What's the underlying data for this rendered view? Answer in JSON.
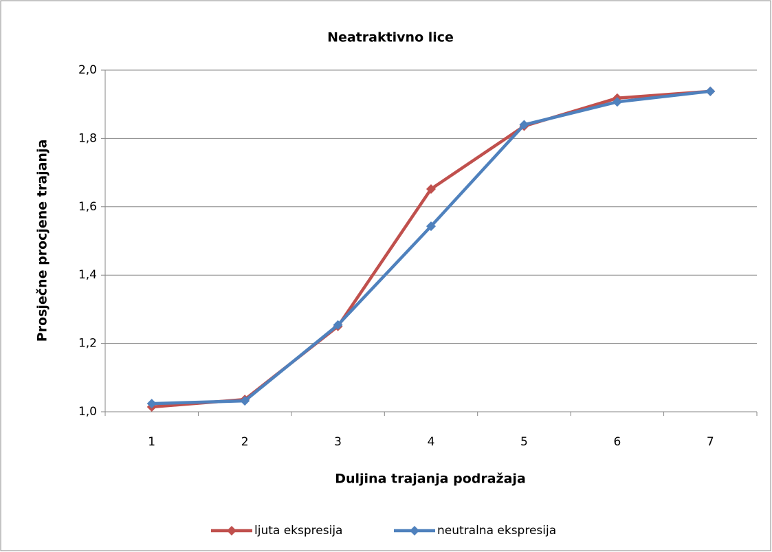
{
  "chart_data": {
    "type": "line",
    "title": "Neatraktivno lice",
    "x_label": "Duljina trajanja podražaja",
    "y_label": "Prosječne  procjene  trajanja",
    "categories": [
      "1",
      "2",
      "3",
      "4",
      "5",
      "6",
      "7"
    ],
    "series": [
      {
        "name": "ljuta ekspresija",
        "color": "#c0504d",
        "values": [
          1.014,
          1.036,
          1.25,
          1.652,
          1.836,
          1.918,
          1.938
        ]
      },
      {
        "name": "neutralna ekspresija",
        "color": "#4f81bd",
        "values": [
          1.024,
          1.032,
          1.254,
          1.543,
          1.84,
          1.907,
          1.938
        ]
      }
    ],
    "ylim": [
      1,
      2
    ],
    "yticks": [
      {
        "value": 1,
        "label": "1,0"
      },
      {
        "value": 1.2,
        "label": "1,2"
      },
      {
        "value": 1.4,
        "label": "1,4"
      },
      {
        "value": 1.6,
        "label": "1,6"
      },
      {
        "value": 1.8,
        "label": "1,8"
      },
      {
        "value": 2,
        "label": "2,0"
      }
    ],
    "grid": true,
    "legend": "bottom"
  }
}
